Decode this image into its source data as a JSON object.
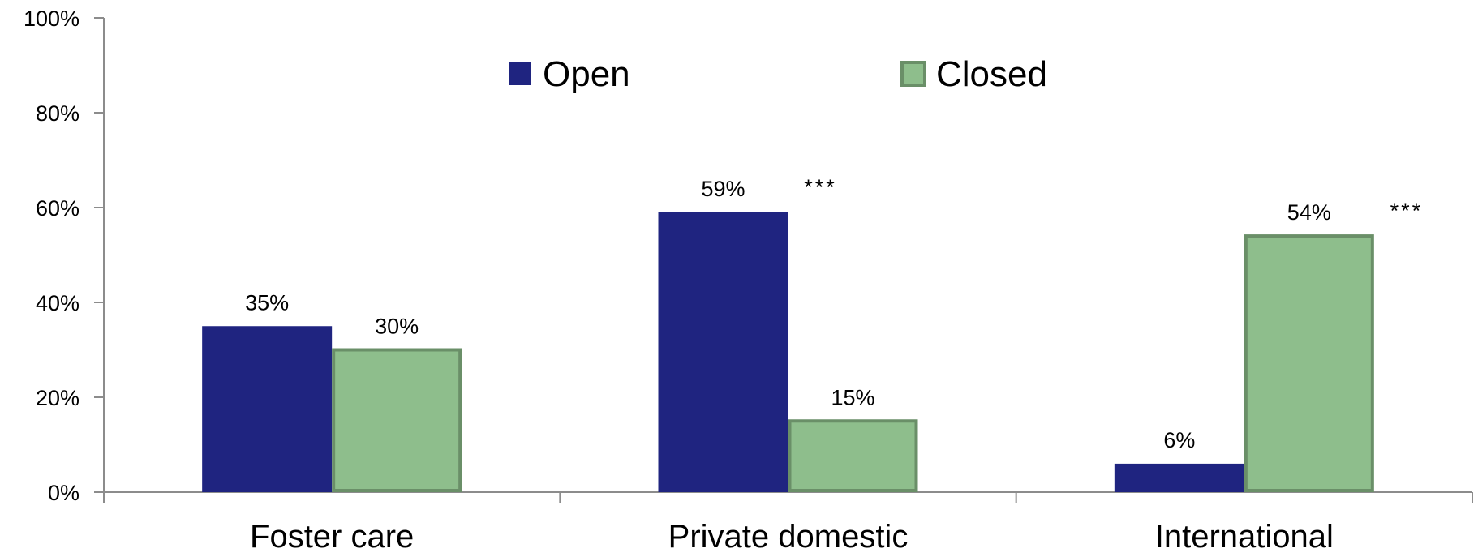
{
  "chart_data": {
    "type": "bar",
    "categories": [
      "Foster care",
      "Private domestic",
      "International"
    ],
    "series": [
      {
        "name": "Open",
        "values": [
          35,
          59,
          6
        ],
        "color": "#1f2480"
      },
      {
        "name": "Closed",
        "values": [
          30,
          15,
          54
        ],
        "color": "#8ebe8c",
        "stroke": "#6a8f68"
      }
    ],
    "data_labels": [
      [
        "35%",
        "59%",
        "6%"
      ],
      [
        "30%",
        "15%",
        "54%"
      ]
    ],
    "significance": [
      {
        "category_index": 1,
        "text": "***"
      },
      {
        "category_index": 2,
        "text": "***"
      }
    ],
    "y_ticks": [
      "0%",
      "20%",
      "40%",
      "60%",
      "80%",
      "100%"
    ],
    "ylim": [
      0,
      100
    ],
    "legend_position": "top-center",
    "grid": false
  }
}
